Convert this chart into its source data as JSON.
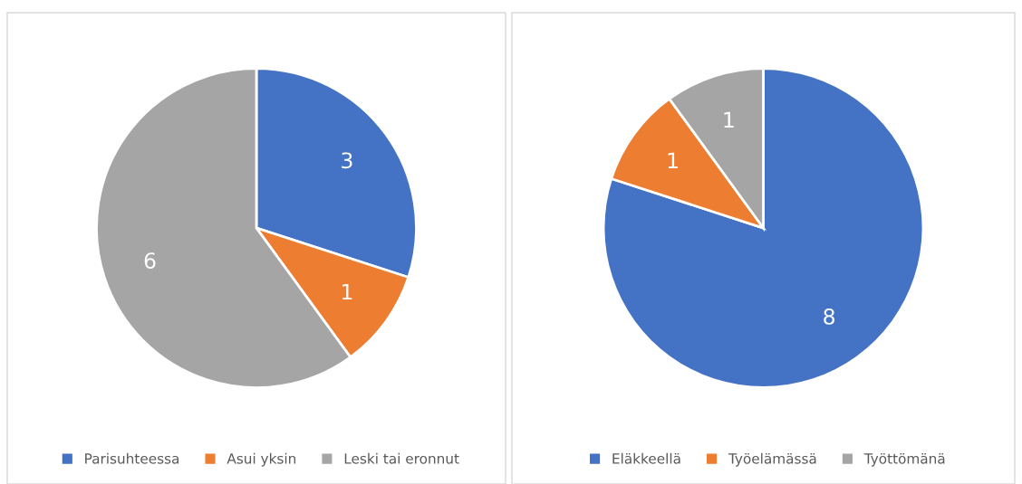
{
  "chart_data": [
    {
      "type": "pie",
      "categories": [
        "Parisuhteessa",
        "Asui yksin",
        "Leski tai eronnut"
      ],
      "values": [
        3,
        1,
        6
      ],
      "colors": [
        "#4472c4",
        "#ed7d31",
        "#a5a5a5"
      ],
      "data_labels": true,
      "legend": "bottom"
    },
    {
      "type": "pie",
      "categories": [
        "Eläkkeellä",
        "Työelämässä",
        "Työttömänä"
      ],
      "values": [
        8,
        1,
        1
      ],
      "colors": [
        "#4472c4",
        "#ed7d31",
        "#a5a5a5"
      ],
      "data_labels": true,
      "legend": "bottom"
    }
  ]
}
